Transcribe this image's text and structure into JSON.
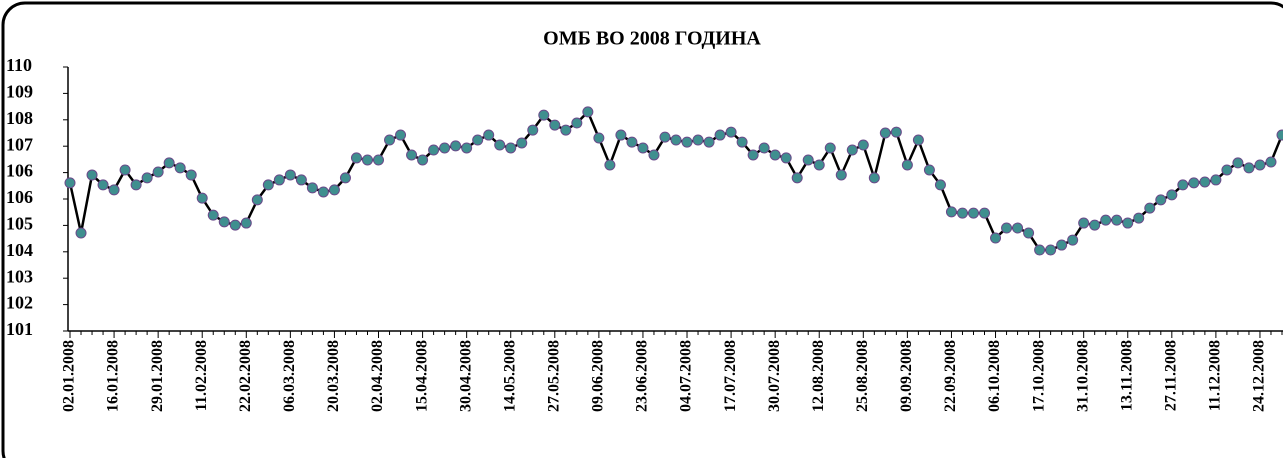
{
  "chart_data": {
    "type": "line",
    "title": "ОМБ ВО 2008 ГОДИНА",
    "categories": [
      "02.01.2008",
      null,
      null,
      null,
      "16.01.2008",
      null,
      null,
      null,
      "29.01.2008",
      null,
      null,
      null,
      "11.02.2008",
      null,
      null,
      null,
      "22.02.2008",
      null,
      null,
      null,
      "06.03.2008",
      null,
      null,
      null,
      "20.03.2008",
      null,
      null,
      null,
      "02.04.2008",
      null,
      null,
      null,
      "15.04.2008",
      null,
      null,
      null,
      "30.04.2008",
      null,
      null,
      null,
      "14.05.2008",
      null,
      null,
      null,
      "27.05.2008",
      null,
      null,
      null,
      "09.06.2008",
      null,
      null,
      null,
      "23.06.2008",
      null,
      null,
      null,
      "04.07.2008",
      null,
      null,
      null,
      "17.07.2008",
      null,
      null,
      null,
      "30.07.2008",
      null,
      null,
      null,
      "12.08.2008",
      null,
      null,
      null,
      "25.08.2008",
      null,
      null,
      null,
      "09.09.2008",
      null,
      null,
      null,
      "22.09.2008",
      null,
      null,
      null,
      "06.10.2008",
      null,
      null,
      null,
      "17.10.2008",
      null,
      null,
      null,
      "31.10.2008",
      null,
      null,
      null,
      "13.11.2008",
      null,
      null,
      null,
      "27.11.2008",
      null,
      null,
      null,
      "11.12.2008",
      null,
      null,
      null,
      "24.12.2008",
      null,
      null
    ],
    "series": [
      {
        "color": "#000000",
        "marker_color": "#3f8f8f",
        "marker_edge": "#6a4a8a",
        "values": [
          106.05,
          104.34,
          106.32,
          105.98,
          105.81,
          106.49,
          105.98,
          106.22,
          106.42,
          106.73,
          106.56,
          106.32,
          105.53,
          104.95,
          104.72,
          104.61,
          104.68,
          105.47,
          105.98,
          106.15,
          106.32,
          106.15,
          105.88,
          105.74,
          105.81,
          106.22,
          106.9,
          106.83,
          106.83,
          107.51,
          107.68,
          107.0,
          106.83,
          107.17,
          107.24,
          107.31,
          107.24,
          107.51,
          107.68,
          107.34,
          107.24,
          107.41,
          107.85,
          108.36,
          108.02,
          107.85,
          108.09,
          108.47,
          107.58,
          106.66,
          107.68,
          107.44,
          107.24,
          107.0,
          107.61,
          107.51,
          107.44,
          107.51,
          107.44,
          107.68,
          107.78,
          107.44,
          107.0,
          107.24,
          107.0,
          106.9,
          106.22,
          106.83,
          106.66,
          107.24,
          106.32,
          107.17,
          107.34,
          106.22,
          107.75,
          107.78,
          106.66,
          107.51,
          106.49,
          105.98,
          105.06,
          105.02,
          105.02,
          105.02,
          104.17,
          104.51,
          104.51,
          104.34,
          103.76,
          103.76,
          103.93,
          104.1,
          104.68,
          104.61,
          104.78,
          104.78,
          104.68,
          104.85,
          105.19,
          105.47,
          105.64,
          105.98,
          106.05,
          106.08,
          106.15,
          106.49,
          106.73,
          106.56,
          106.66,
          106.76,
          107.68
        ]
      }
    ],
    "ylim": [
      101,
      110
    ],
    "yticks": [
      101,
      {
        "value": 101.9,
        "label": "102"
      },
      {
        "value": 102.8,
        "label": "103"
      },
      {
        "value": 103.7,
        "label": "104"
      },
      {
        "value": 104.6,
        "label": "105"
      },
      {
        "value": 105.5,
        "label": "106"
      },
      {
        "value": 106.4,
        "label": "106"
      },
      {
        "value": 107.3,
        "label": "107"
      },
      {
        "value": 108.2,
        "label": "108"
      },
      {
        "value": 109.1,
        "label": "109"
      },
      110
    ],
    "grid": false
  }
}
